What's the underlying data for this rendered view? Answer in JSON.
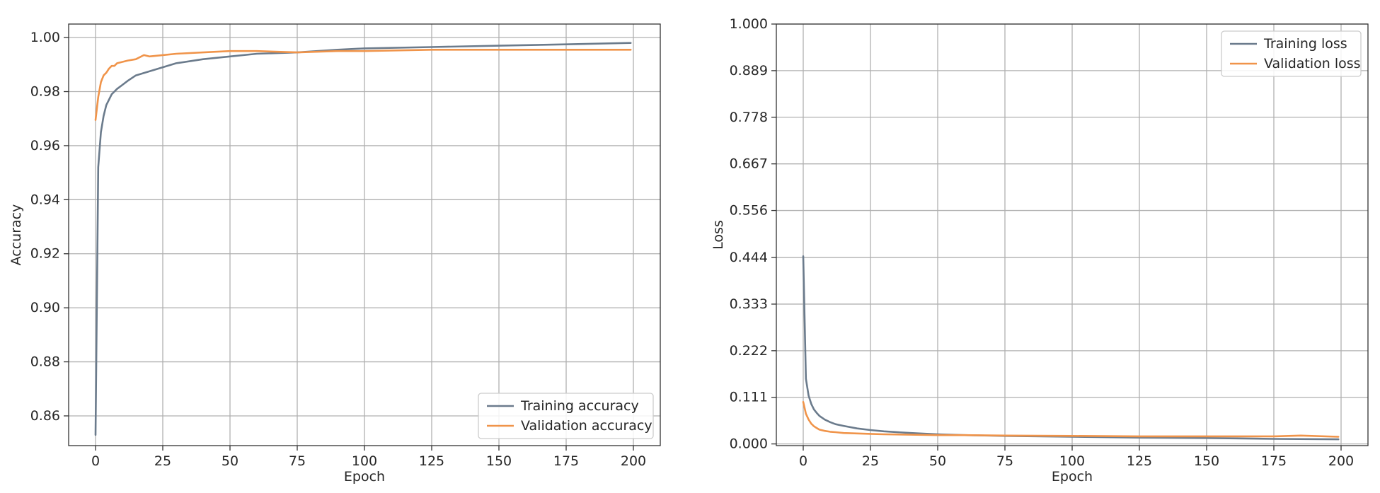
{
  "colors": {
    "training": "#6b7b8c",
    "validation": "#f0944a",
    "grid": "#b0b0b0",
    "frame": "#333333"
  },
  "chart_data": [
    {
      "type": "line",
      "xlabel": "Epoch",
      "ylabel": "Accuracy",
      "xlim": [
        -10,
        210
      ],
      "ylim": [
        0.849,
        1.005
      ],
      "xticks": [
        0,
        25,
        50,
        75,
        100,
        125,
        150,
        175,
        200
      ],
      "xtick_labels": [
        "0",
        "25",
        "50",
        "75",
        "100",
        "125",
        "150",
        "175",
        "200"
      ],
      "yticks": [
        0.86,
        0.88,
        0.9,
        0.92,
        0.94,
        0.96,
        0.98,
        1.0
      ],
      "ytick_labels": [
        "0.86",
        "0.88",
        "0.90",
        "0.92",
        "0.94",
        "0.96",
        "0.98",
        "1.00"
      ],
      "grid": true,
      "legend_position": "lower right",
      "series": [
        {
          "name": "Training accuracy",
          "color_key": "training",
          "x": [
            0,
            1,
            2,
            3,
            4,
            5,
            6,
            7,
            8,
            10,
            12,
            15,
            20,
            25,
            30,
            40,
            50,
            60,
            75,
            90,
            100,
            125,
            150,
            175,
            199
          ],
          "y": [
            0.853,
            0.952,
            0.965,
            0.971,
            0.975,
            0.977,
            0.979,
            0.98,
            0.981,
            0.9825,
            0.984,
            0.986,
            0.9875,
            0.989,
            0.9905,
            0.992,
            0.993,
            0.994,
            0.9945,
            0.9955,
            0.996,
            0.9965,
            0.997,
            0.9975,
            0.998
          ]
        },
        {
          "name": "Validation accuracy",
          "color_key": "validation",
          "x": [
            0,
            1,
            2,
            3,
            4,
            5,
            6,
            7,
            8,
            10,
            12,
            15,
            18,
            20,
            25,
            30,
            40,
            50,
            60,
            75,
            90,
            100,
            125,
            150,
            175,
            199
          ],
          "y": [
            0.9695,
            0.978,
            0.9835,
            0.986,
            0.987,
            0.9885,
            0.9895,
            0.9895,
            0.9905,
            0.991,
            0.9915,
            0.992,
            0.9935,
            0.993,
            0.9935,
            0.994,
            0.9945,
            0.995,
            0.995,
            0.9945,
            0.995,
            0.995,
            0.9955,
            0.9955,
            0.9955,
            0.9955
          ]
        }
      ]
    },
    {
      "type": "line",
      "xlabel": "Epoch",
      "ylabel": "Loss",
      "xlim": [
        -10,
        210
      ],
      "ylim": [
        -0.004,
        1.0
      ],
      "xticks": [
        0,
        25,
        50,
        75,
        100,
        125,
        150,
        175,
        200
      ],
      "xtick_labels": [
        "0",
        "25",
        "50",
        "75",
        "100",
        "125",
        "150",
        "175",
        "200"
      ],
      "yticks": [
        0.0,
        0.111,
        0.222,
        0.333,
        0.444,
        0.556,
        0.667,
        0.778,
        0.889,
        1.0
      ],
      "ytick_labels": [
        "0.000",
        "0.111",
        "0.222",
        "0.333",
        "0.444",
        "0.556",
        "0.667",
        "0.778",
        "0.889",
        "1.000"
      ],
      "grid": true,
      "legend_position": "upper right",
      "series": [
        {
          "name": "Training loss",
          "color_key": "training",
          "x": [
            0,
            1,
            2,
            3,
            4,
            5,
            6,
            8,
            10,
            12,
            15,
            20,
            25,
            30,
            40,
            50,
            60,
            75,
            100,
            125,
            150,
            175,
            199
          ],
          "y": [
            0.447,
            0.155,
            0.115,
            0.095,
            0.082,
            0.074,
            0.067,
            0.058,
            0.052,
            0.047,
            0.043,
            0.037,
            0.033,
            0.03,
            0.026,
            0.023,
            0.021,
            0.019,
            0.017,
            0.015,
            0.014,
            0.012,
            0.011
          ]
        },
        {
          "name": "Validation loss",
          "color_key": "validation",
          "x": [
            0,
            1,
            2,
            3,
            4,
            5,
            6,
            8,
            10,
            12,
            15,
            20,
            25,
            30,
            40,
            50,
            60,
            75,
            100,
            125,
            150,
            175,
            185,
            199
          ],
          "y": [
            0.1,
            0.072,
            0.058,
            0.048,
            0.042,
            0.038,
            0.034,
            0.031,
            0.029,
            0.028,
            0.026,
            0.025,
            0.024,
            0.023,
            0.022,
            0.021,
            0.021,
            0.02,
            0.019,
            0.018,
            0.018,
            0.018,
            0.02,
            0.017
          ]
        }
      ]
    }
  ]
}
